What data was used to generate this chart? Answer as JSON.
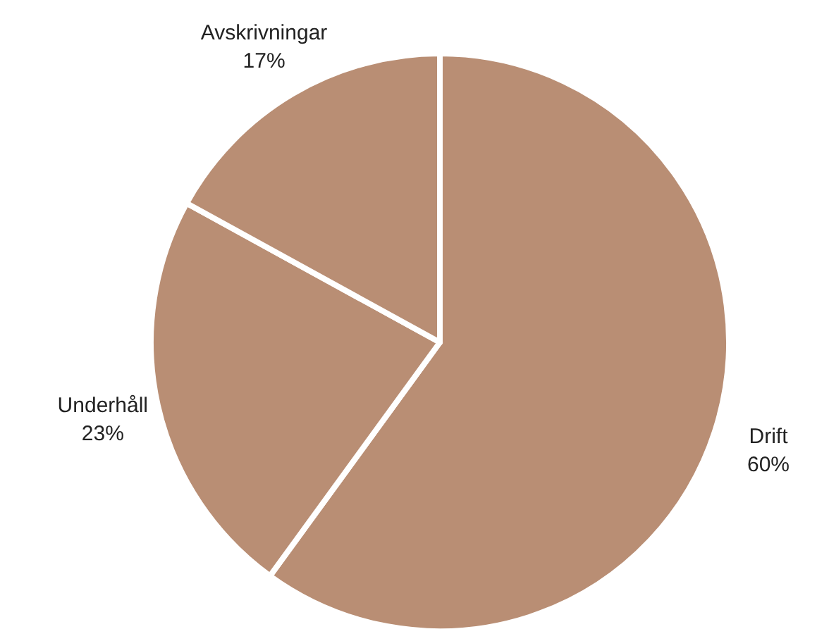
{
  "chart_data": {
    "type": "pie",
    "categories": [
      "Drift",
      "Underhåll",
      "Avskrivningar"
    ],
    "values": [
      60,
      23,
      17
    ],
    "value_labels": [
      "60%",
      "23%",
      "17%"
    ],
    "colors": [
      "#b98e74",
      "#b98e74",
      "#b98e74"
    ]
  }
}
